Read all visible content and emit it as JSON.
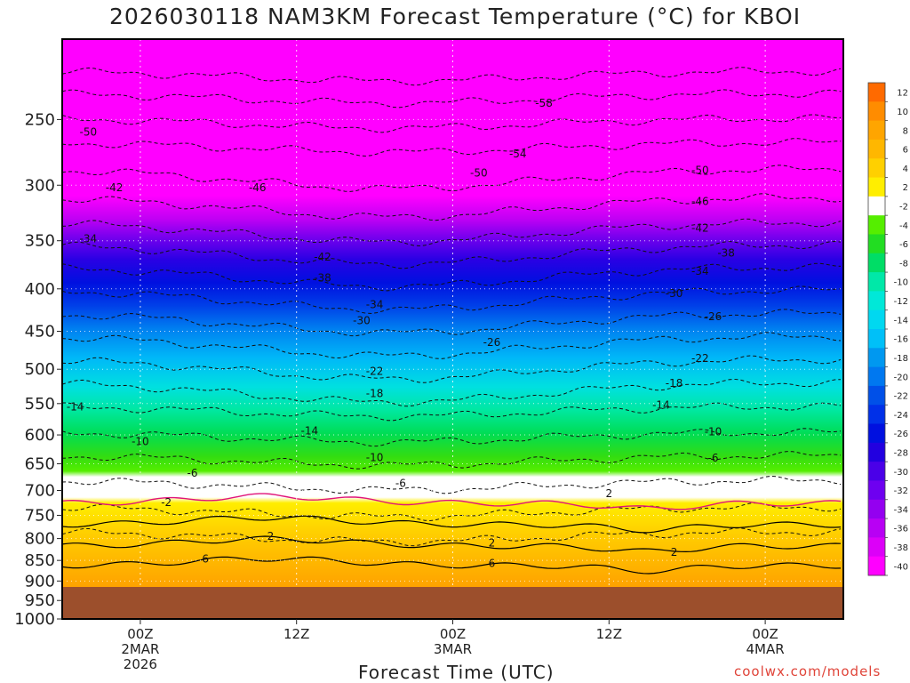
{
  "chart_data": {
    "type": "heatmap",
    "title": "2026030118 NAM3KM Forecast Temperature (°C) for KBOI",
    "xlabel": "Forecast Time (UTC)",
    "ylabel": "",
    "y_axis": {
      "scale": "log-pressure",
      "range": [
        200,
        1000
      ],
      "ticks": [
        250,
        300,
        350,
        400,
        450,
        500,
        550,
        600,
        650,
        700,
        750,
        800,
        850,
        900,
        950,
        1000
      ]
    },
    "x_axis": {
      "range_hours": [
        -6,
        54
      ],
      "ticks": [
        {
          "hour": 0,
          "lines": [
            "00Z",
            "2MAR",
            "2026"
          ]
        },
        {
          "hour": 12,
          "lines": [
            "12Z"
          ]
        },
        {
          "hour": 24,
          "lines": [
            "00Z",
            "3MAR"
          ]
        },
        {
          "hour": 36,
          "lines": [
            "12Z"
          ]
        },
        {
          "hour": 48,
          "lines": [
            "00Z",
            "4MAR"
          ]
        }
      ]
    },
    "ground_pressure": 915,
    "colorbar_labels": [
      "12",
      "10",
      "8",
      "6",
      "4",
      "2",
      "-2",
      "-4",
      "-6",
      "-8",
      "-10",
      "-12",
      "-14",
      "-16",
      "-18",
      "-20",
      "-22",
      "-24",
      "-26",
      "-28",
      "-30",
      "-32",
      "-34",
      "-36",
      "-38",
      "-40"
    ],
    "colorbar_colors": [
      "#ff6a00",
      "#ff8c00",
      "#ffa500",
      "#ffb700",
      "#ffd000",
      "#ffee00",
      "#ffffff",
      "#55ee00",
      "#22dd22",
      "#00dd66",
      "#00e8a8",
      "#00e8d8",
      "#00d8f0",
      "#00c0f8",
      "#0098f0",
      "#0078f0",
      "#0050e8",
      "#0030e8",
      "#0010e0",
      "#2200e0",
      "#4a00e8",
      "#6e00f0",
      "#9400f0",
      "#b800f4",
      "#dc00f8",
      "#ff00ff"
    ],
    "contour_labels": [
      {
        "text": "-58",
        "hour": 31,
        "p": 239
      },
      {
        "text": "-54",
        "hour": 29,
        "p": 275
      },
      {
        "text": "-50",
        "hour": -4,
        "p": 259
      },
      {
        "text": "-50",
        "hour": 26,
        "p": 290
      },
      {
        "text": "-50",
        "hour": 43,
        "p": 288
      },
      {
        "text": "-46",
        "hour": 9,
        "p": 302
      },
      {
        "text": "-46",
        "hour": 43,
        "p": 314
      },
      {
        "text": "-42",
        "hour": -2,
        "p": 302
      },
      {
        "text": "-42",
        "hour": 14,
        "p": 366
      },
      {
        "text": "-42",
        "hour": 43,
        "p": 338
      },
      {
        "text": "-38",
        "hour": 14,
        "p": 388
      },
      {
        "text": "-38",
        "hour": 45,
        "p": 362
      },
      {
        "text": "-34",
        "hour": -4,
        "p": 348
      },
      {
        "text": "-34",
        "hour": 18,
        "p": 418
      },
      {
        "text": "-34",
        "hour": 43,
        "p": 381
      },
      {
        "text": "-30",
        "hour": 17,
        "p": 437
      },
      {
        "text": "-30",
        "hour": 41,
        "p": 405
      },
      {
        "text": "-26",
        "hour": 27,
        "p": 464
      },
      {
        "text": "-26",
        "hour": 44,
        "p": 432
      },
      {
        "text": "-22",
        "hour": 18,
        "p": 503
      },
      {
        "text": "-22",
        "hour": 43,
        "p": 485
      },
      {
        "text": "-18",
        "hour": 18,
        "p": 535
      },
      {
        "text": "-18",
        "hour": 41,
        "p": 520
      },
      {
        "text": "-14",
        "hour": -5,
        "p": 555
      },
      {
        "text": "-14",
        "hour": 13,
        "p": 593
      },
      {
        "text": "-14",
        "hour": 40,
        "p": 552
      },
      {
        "text": "-10",
        "hour": 0,
        "p": 611
      },
      {
        "text": "-10",
        "hour": 18,
        "p": 639
      },
      {
        "text": "-10",
        "hour": 44,
        "p": 595
      },
      {
        "text": "-6",
        "hour": 4,
        "p": 667
      },
      {
        "text": "-6",
        "hour": 20,
        "p": 686
      },
      {
        "text": "-6",
        "hour": 44,
        "p": 640
      },
      {
        "text": "-2",
        "hour": 2,
        "p": 724
      },
      {
        "text": "2",
        "hour": 36,
        "p": 706
      },
      {
        "text": "2",
        "hour": 10,
        "p": 795
      },
      {
        "text": "2",
        "hour": 27,
        "p": 810
      },
      {
        "text": "2",
        "hour": 41,
        "p": 831
      },
      {
        "text": "6",
        "hour": 5,
        "p": 846
      },
      {
        "text": "6",
        "hour": 27,
        "p": 857
      }
    ]
  },
  "credit": "coolwx.com/models"
}
